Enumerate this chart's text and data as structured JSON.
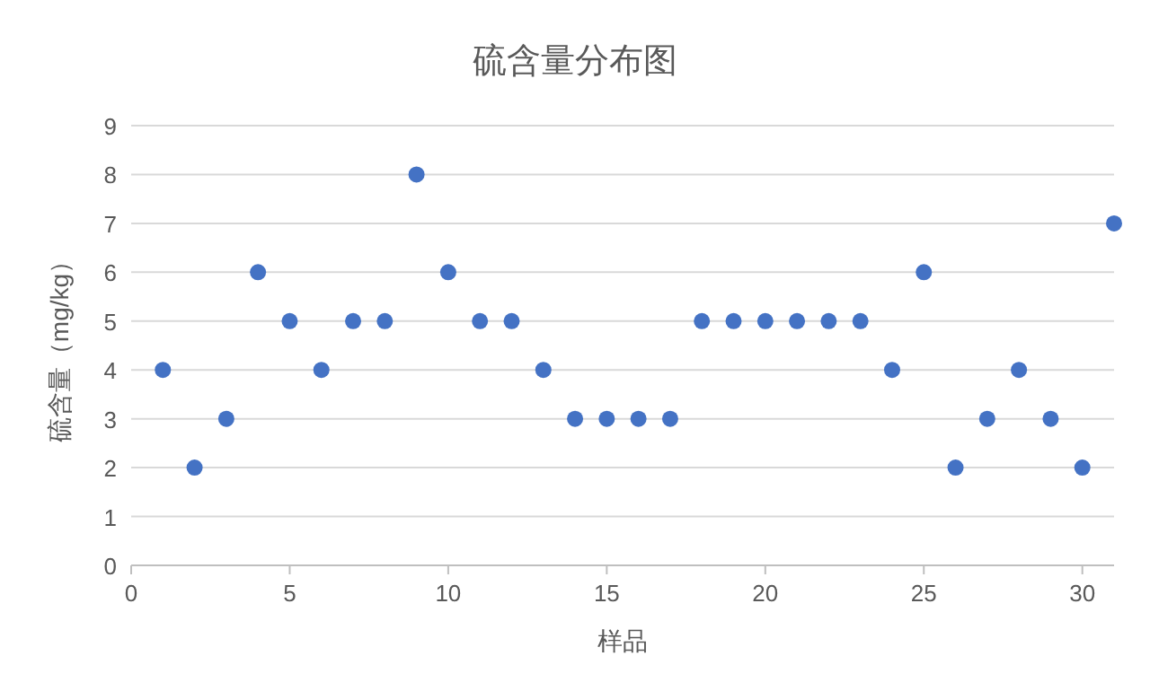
{
  "chart_data": {
    "type": "scatter",
    "title": "硫含量分布图",
    "xlabel": "样品",
    "ylabel": "硫含量（mg/kg）",
    "x": [
      1,
      2,
      3,
      4,
      5,
      6,
      7,
      8,
      9,
      10,
      11,
      12,
      13,
      14,
      15,
      16,
      17,
      18,
      19,
      20,
      21,
      22,
      23,
      24,
      25,
      26,
      27,
      28,
      29,
      30,
      31
    ],
    "series": [
      {
        "color": "#4472c4",
        "values": [
          4,
          2,
          3,
          6,
          5,
          4,
          5,
          5,
          8,
          6,
          5,
          5,
          4,
          3,
          3,
          3,
          3,
          5,
          5,
          5,
          5,
          5,
          5,
          4,
          6,
          2,
          3,
          4,
          3,
          2,
          7
        ]
      }
    ],
    "xlim": [
      0,
      31
    ],
    "xticks": [
      0,
      5,
      10,
      15,
      20,
      25,
      30
    ],
    "ylim": [
      0,
      9
    ],
    "yticks": [
      0,
      1,
      2,
      3,
      4,
      5,
      6,
      7,
      8,
      9
    ],
    "grid": "y",
    "marker": "circle"
  }
}
